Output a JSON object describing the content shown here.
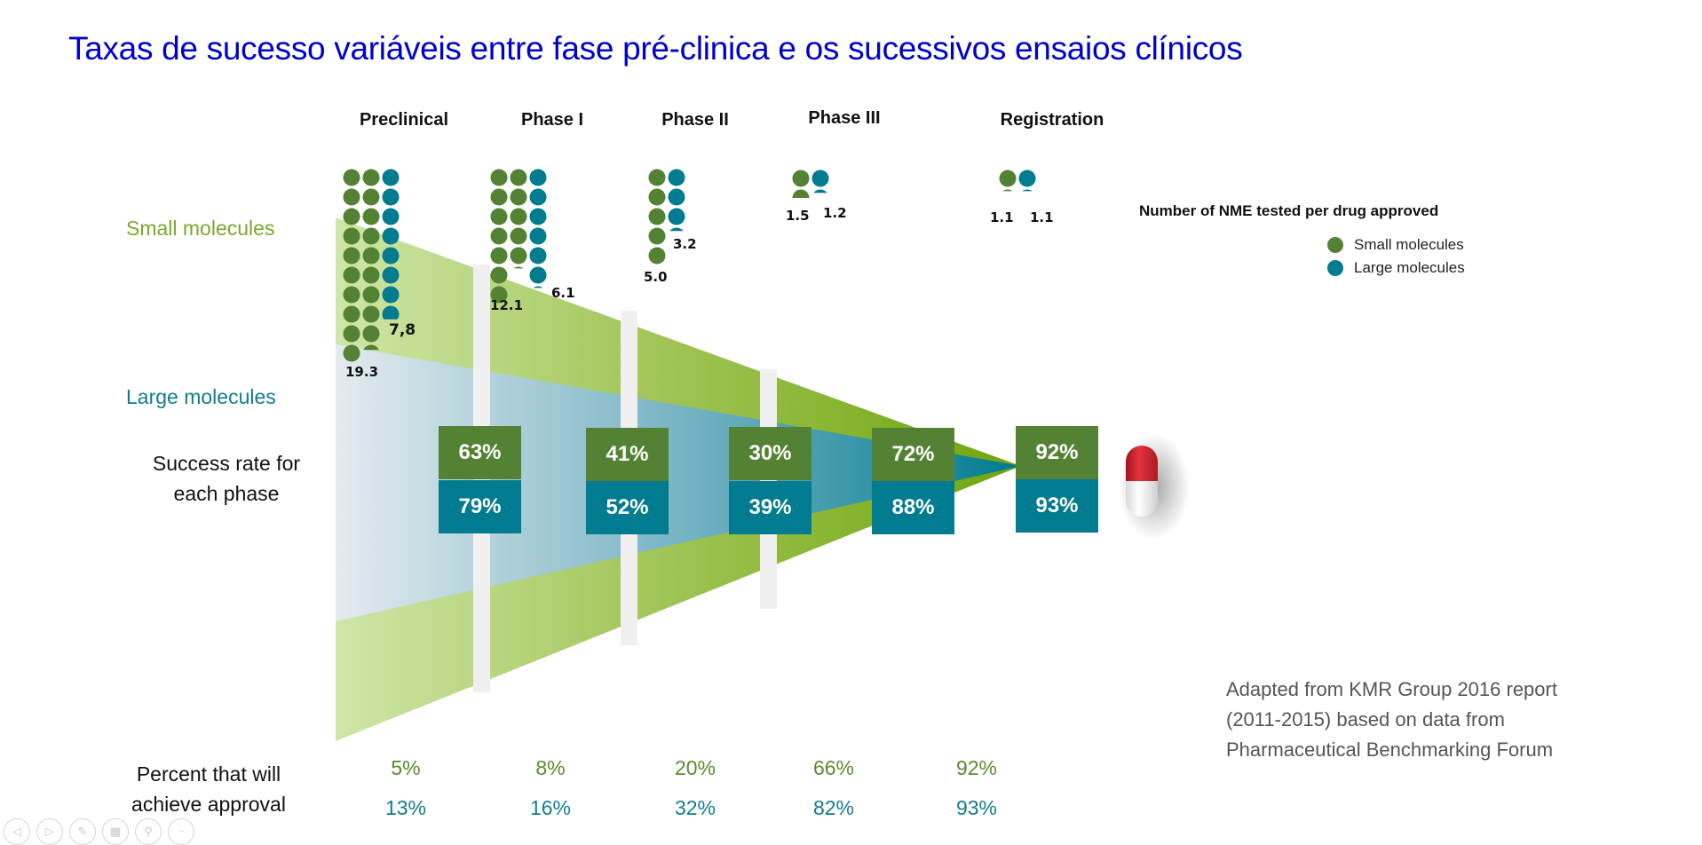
{
  "title": "Taxas de sucesso variáveis entre fase pré-clinica e os sucessivos ensaios clínicos",
  "side_labels": {
    "small": "Small molecules",
    "large": "Large molecules",
    "success_line1": "Success rate for",
    "success_line2": "each phase",
    "approval_line1": "Percent that will",
    "approval_line2": "achieve approval"
  },
  "colors": {
    "small": "#548235",
    "large": "#007b8f",
    "title": "#0000cc",
    "green_band": "#7aa82a",
    "blue_band": "#137c8f"
  },
  "legend": {
    "title": "Number of NME tested per drug approved",
    "items": [
      {
        "label": "Small molecules",
        "color": "#548235"
      },
      {
        "label": "Large molecules",
        "color": "#007b8f"
      }
    ]
  },
  "source": {
    "line1": "Adapted from KMR Group 2016 report",
    "line2": "(2011-2015) based on data from",
    "line3": "Pharmaceutical Benchmarking Forum"
  },
  "nav": [
    {
      "name": "previous-icon",
      "glyph": "◁"
    },
    {
      "name": "next-icon",
      "glyph": "▷"
    },
    {
      "name": "pen-icon",
      "glyph": "✎"
    },
    {
      "name": "slides-icon",
      "glyph": "▦"
    },
    {
      "name": "zoom-icon",
      "glyph": "⚲"
    },
    {
      "name": "more-icon",
      "glyph": "···"
    }
  ],
  "chart_data": {
    "type": "funnel",
    "title": "Taxas de sucesso variáveis entre fase pré-clinica e os sucessivos ensaios clínicos",
    "categories": [
      "Preclinical",
      "Phase I",
      "Phase II",
      "Phase III",
      "Registration"
    ],
    "series": [
      {
        "name": "Small molecules",
        "nme_per_approval": [
          19.3,
          12.1,
          5.0,
          1.5,
          1.1
        ],
        "nme_labels": [
          "19.3",
          "12.1",
          "5.0",
          "1.5",
          "1.1"
        ],
        "success_rate_pct": [
          63,
          41,
          30,
          72,
          92
        ],
        "success_rate_labels": [
          "63%",
          "41%",
          "30%",
          "72%",
          "92%"
        ],
        "approval_pct": [
          5,
          8,
          20,
          66,
          92
        ],
        "approval_labels": [
          "5%",
          "8%",
          "20%",
          "66%",
          "92%"
        ]
      },
      {
        "name": "Large molecules",
        "nme_per_approval": [
          7.8,
          6.1,
          3.2,
          1.2,
          1.1
        ],
        "nme_labels": [
          "7,8",
          "6.1",
          "3.2",
          "1.2",
          "1.1"
        ],
        "success_rate_pct": [
          79,
          52,
          39,
          88,
          93
        ],
        "success_rate_labels": [
          "79%",
          "52%",
          "39%",
          "88%",
          "93%"
        ],
        "approval_pct": [
          13,
          16,
          32,
          82,
          93
        ],
        "approval_labels": [
          "13%",
          "16%",
          "32%",
          "82%",
          "93%"
        ]
      }
    ]
  }
}
